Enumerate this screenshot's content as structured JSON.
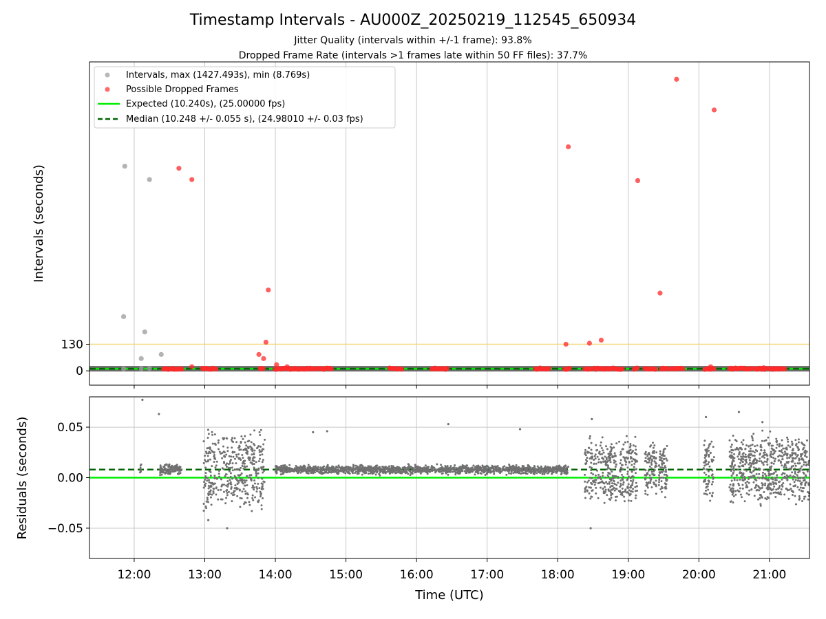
{
  "title": "Timestamp Intervals - AU000Z_20250219_112545_650934",
  "subtitle_1": "Jitter Quality (intervals within +/-1 frame): 93.8%",
  "subtitle_2": "Dropped Frame Rate (intervals >1 frames late within 50 FF files): 37.7%",
  "colors": {
    "intervals": "#a0a0a0",
    "dropped": "#ff2a2a",
    "expected": "#00ee00",
    "median": "#006400",
    "threshold": "#f5d77a",
    "residual_points": "#707070",
    "grid": "#c8c8c8"
  },
  "chart_data": [
    {
      "type": "scatter",
      "ylabel": "Intervals (seconds)",
      "yticks": [
        "130",
        "0"
      ],
      "ylim": [
        -70,
        1510
      ],
      "xlim": [
        "11:22",
        "21:34"
      ],
      "grid": "vertical",
      "legend_position": "top-left",
      "legend": [
        {
          "label": "Intervals, max (1427.493s), min (8.769s)",
          "style": "marker",
          "color": "#a0a0a0"
        },
        {
          "label": "Possible Dropped Frames",
          "style": "marker",
          "color": "#ff2a2a"
        },
        {
          "label": "Expected (10.240s), (25.00000 fps)",
          "style": "solid-line",
          "color": "#00ee00"
        },
        {
          "label": "Median (10.248 +/- 0.055 s), (24.98010 +/- 0.03 fps)",
          "style": "dashed-line",
          "color": "#006400"
        }
      ],
      "expected_y": 10.24,
      "median_y": 10.248,
      "threshold_y": 130,
      "baseline_segments": [
        [
          "11:22",
          "21:34"
        ]
      ],
      "intervals_points": [
        {
          "x": "11:52",
          "y": 1000
        },
        {
          "x": "11:51",
          "y": 265
        },
        {
          "x": "12:13",
          "y": 935
        },
        {
          "x": "12:09",
          "y": 190
        },
        {
          "x": "12:06",
          "y": 60
        },
        {
          "x": "12:23",
          "y": 80
        },
        {
          "x": "11:51",
          "y": 10
        },
        {
          "x": "12:06",
          "y": 11
        },
        {
          "x": "12:13",
          "y": 12
        }
      ],
      "dropped_points": [
        {
          "x": "12:38",
          "y": 990
        },
        {
          "x": "12:49",
          "y": 935
        },
        {
          "x": "12:49",
          "y": 20
        },
        {
          "x": "13:46",
          "y": 80
        },
        {
          "x": "13:50",
          "y": 60
        },
        {
          "x": "13:52",
          "y": 140
        },
        {
          "x": "13:54",
          "y": 395
        },
        {
          "x": "14:01",
          "y": 30
        },
        {
          "x": "14:10",
          "y": 20
        },
        {
          "x": "18:07",
          "y": 130
        },
        {
          "x": "18:09",
          "y": 1095
        },
        {
          "x": "18:27",
          "y": 135
        },
        {
          "x": "18:37",
          "y": 150
        },
        {
          "x": "19:08",
          "y": 930
        },
        {
          "x": "19:27",
          "y": 380
        },
        {
          "x": "19:41",
          "y": 1425
        },
        {
          "x": "20:13",
          "y": 1275
        },
        {
          "x": "20:10",
          "y": 20
        },
        {
          "x": "20:55",
          "y": 15
        }
      ],
      "dropped_bands": [
        [
          "12:25",
          "12:41"
        ],
        [
          "12:58",
          "13:10"
        ],
        [
          "13:47",
          "13:50"
        ],
        [
          "14:00",
          "14:34"
        ],
        [
          "14:36",
          "14:48"
        ],
        [
          "15:37",
          "15:48"
        ],
        [
          "16:13",
          "16:27"
        ],
        [
          "17:41",
          "17:53"
        ],
        [
          "18:06",
          "18:11"
        ],
        [
          "18:23",
          "18:29"
        ],
        [
          "18:31",
          "18:41"
        ],
        [
          "18:42",
          "18:55"
        ],
        [
          "19:05",
          "19:08"
        ],
        [
          "19:14",
          "19:24"
        ],
        [
          "19:28",
          "19:34"
        ],
        [
          "19:36",
          "19:47"
        ],
        [
          "20:05",
          "20:14"
        ],
        [
          "20:26",
          "20:46"
        ],
        [
          "20:48",
          "20:58"
        ],
        [
          "21:00",
          "21:14"
        ]
      ]
    },
    {
      "type": "scatter",
      "xlabel": "Time (UTC)",
      "ylabel": "Residuals (seconds)",
      "xticks": [
        "12:00",
        "13:00",
        "14:00",
        "15:00",
        "16:00",
        "17:00",
        "18:00",
        "19:00",
        "20:00",
        "21:00"
      ],
      "yticks": [
        "0.05",
        "0.00",
        "−0.05"
      ],
      "ylim": [
        -0.08,
        0.08
      ],
      "xlim": [
        "11:22",
        "21:34"
      ],
      "grid": "both",
      "expected_y": 0.0,
      "median_y": 0.008,
      "residual_clusters": [
        {
          "start": "12:05",
          "end": "12:06",
          "center": 0.008,
          "spread": 0.006,
          "count": 8
        },
        {
          "start": "12:22",
          "end": "12:40",
          "center": 0.008,
          "spread": 0.005,
          "count": 120
        },
        {
          "start": "12:59",
          "end": "13:51",
          "center": 0.008,
          "spread": 0.03,
          "count": 420
        },
        {
          "start": "14:00",
          "end": "18:09",
          "center": 0.008,
          "spread": 0.004,
          "count": 1500
        },
        {
          "start": "18:23",
          "end": "19:08",
          "center": 0.008,
          "spread": 0.025,
          "count": 380
        },
        {
          "start": "19:14",
          "end": "19:24",
          "center": 0.008,
          "spread": 0.02,
          "count": 90
        },
        {
          "start": "19:26",
          "end": "19:33",
          "center": 0.008,
          "spread": 0.02,
          "count": 70
        },
        {
          "start": "20:04",
          "end": "20:13",
          "center": 0.008,
          "spread": 0.025,
          "count": 80
        },
        {
          "start": "20:26",
          "end": "21:34",
          "center": 0.008,
          "spread": 0.025,
          "count": 650
        }
      ],
      "residual_outliers": [
        {
          "x": "12:07",
          "y": 0.077
        },
        {
          "x": "12:21",
          "y": 0.063
        },
        {
          "x": "13:03",
          "y": -0.042
        },
        {
          "x": "13:19",
          "y": -0.05
        },
        {
          "x": "14:32",
          "y": 0.045
        },
        {
          "x": "14:44",
          "y": 0.046
        },
        {
          "x": "16:27",
          "y": 0.053
        },
        {
          "x": "17:28",
          "y": 0.048
        },
        {
          "x": "18:28",
          "y": -0.05
        },
        {
          "x": "18:29",
          "y": 0.058
        },
        {
          "x": "20:06",
          "y": 0.06
        },
        {
          "x": "20:34",
          "y": 0.065
        },
        {
          "x": "20:54",
          "y": 0.055
        }
      ]
    }
  ]
}
